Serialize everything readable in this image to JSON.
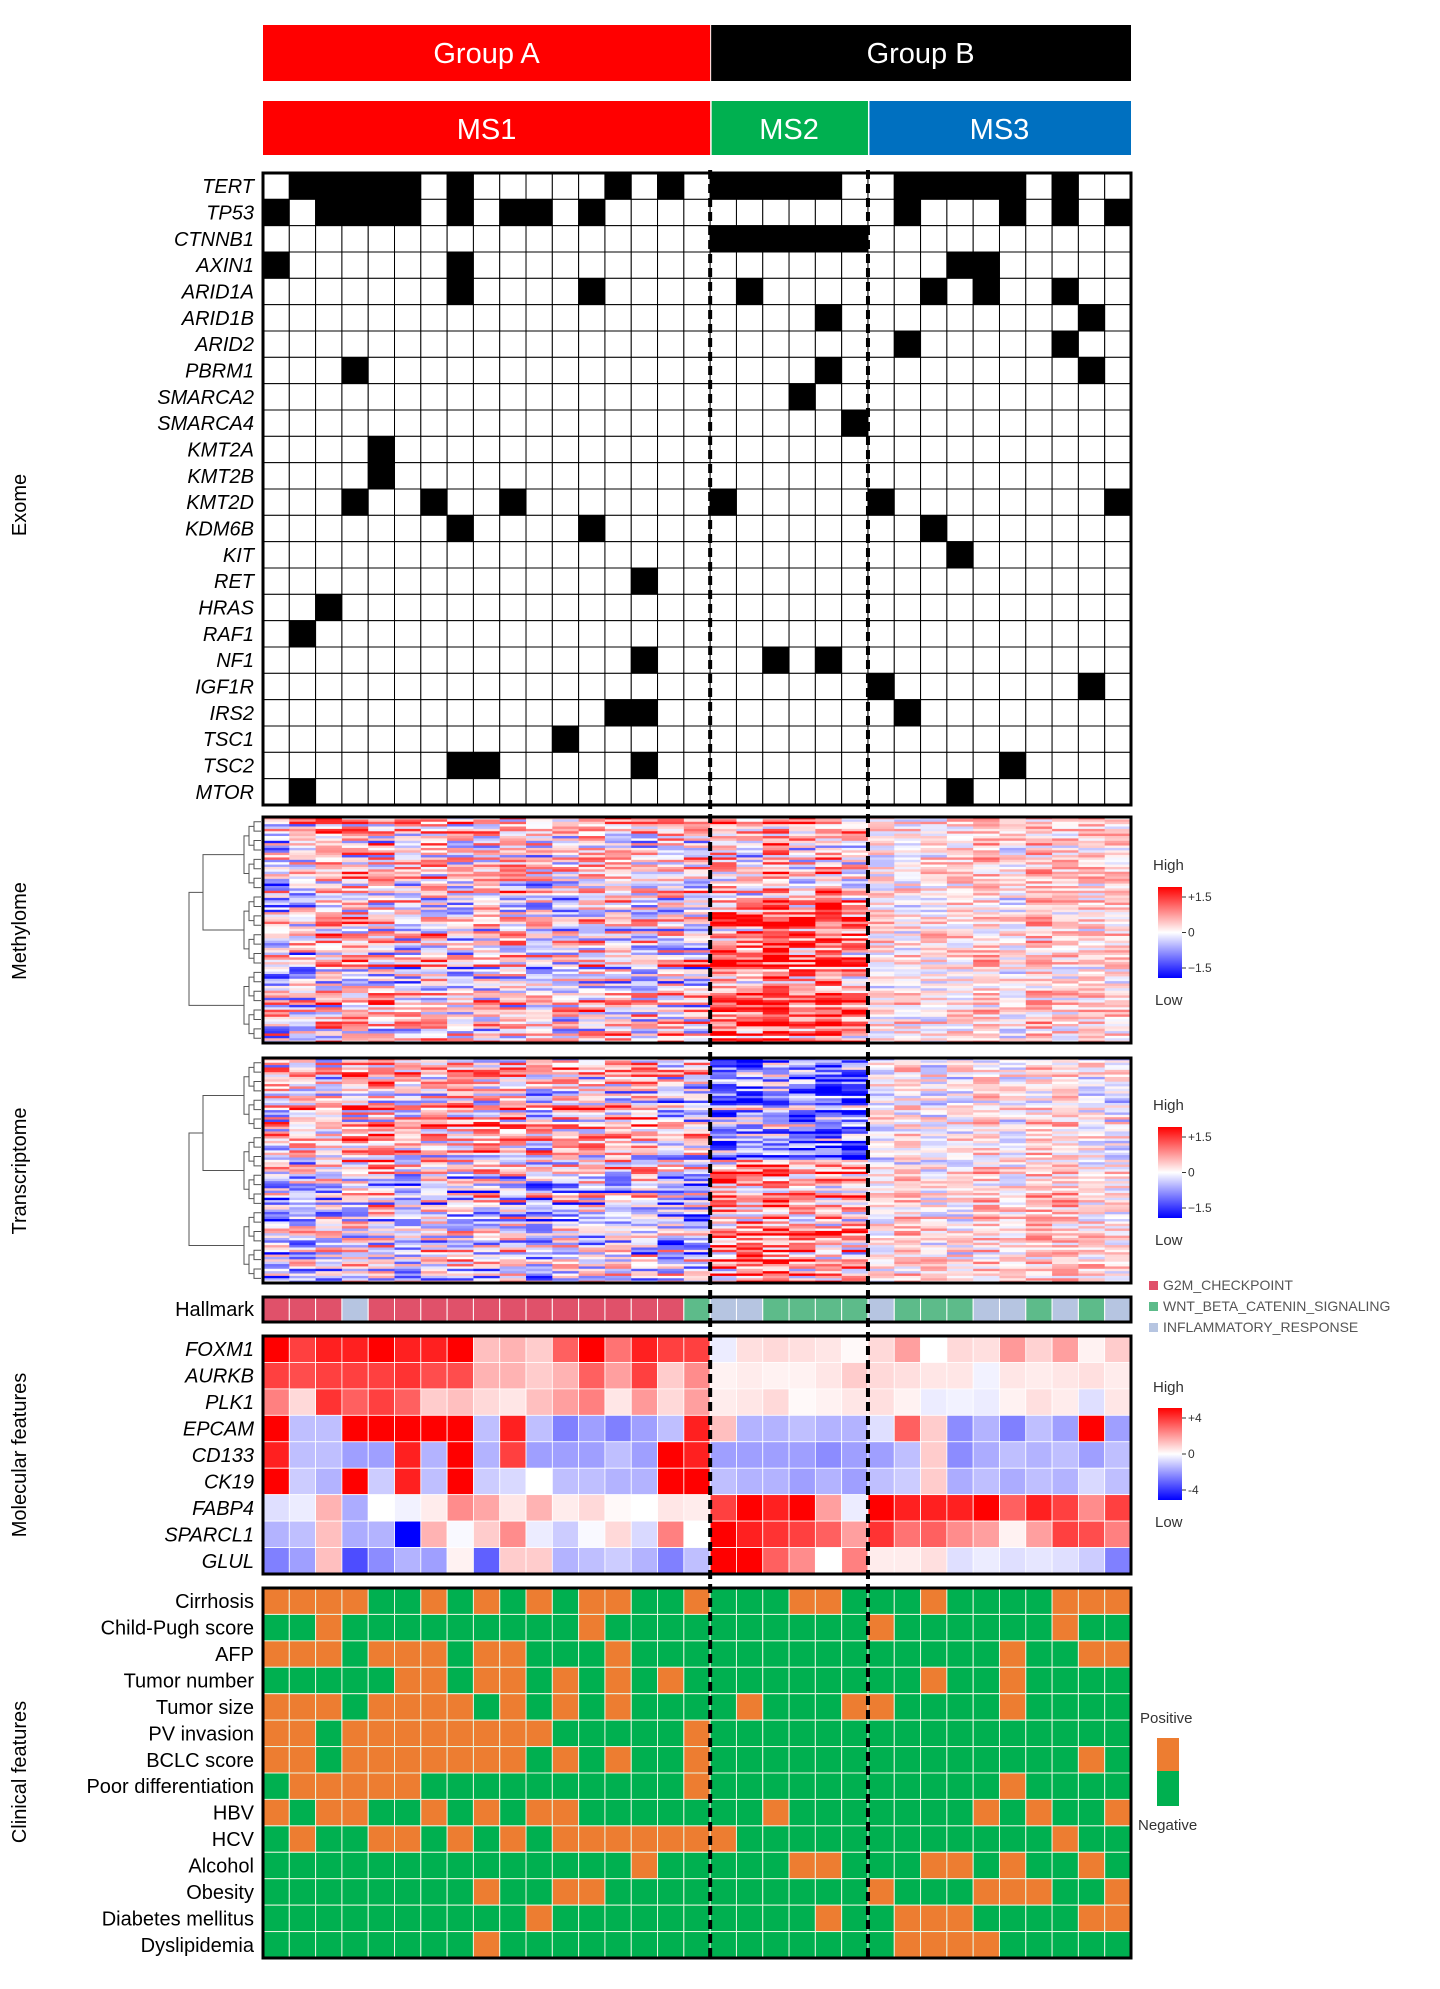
{
  "chart_data": {
    "type": "heatmap",
    "groups": [
      {
        "label": "Group A",
        "color": "#FF0000",
        "n": 17
      },
      {
        "label": "Group B",
        "color": "#000000",
        "n": 16
      }
    ],
    "subtypes": [
      {
        "label": "MS1",
        "color": "#FF0000",
        "n": 17
      },
      {
        "label": "MS2",
        "color": "#00B050",
        "n": 6
      },
      {
        "label": "MS3",
        "color": "#0070C0",
        "n": 10
      }
    ],
    "exome": {
      "label": "Exome",
      "mutated_color": "#000000",
      "genes": [
        {
          "name": "TERT",
          "values": "01111101000001010|111110|0111110100"
        },
        {
          "name": "TP53",
          "values": "10111101011010000|000000|0100010101"
        },
        {
          "name": "CTNNB1",
          "values": "00000000000000000|111111|0000000000"
        },
        {
          "name": "AXIN1",
          "values": "10000001000000000|000000|0001100000"
        },
        {
          "name": "ARID1A",
          "values": "00000001000010000|010000|0010100100"
        },
        {
          "name": "ARID1B",
          "values": "00000000000000000|000010|0000000010"
        },
        {
          "name": "ARID2",
          "values": "00000000000000000|000000|0100000100"
        },
        {
          "name": "PBRM1",
          "values": "00010000000000000|000010|0000000010"
        },
        {
          "name": "SMARCA2",
          "values": "00000000000000000|000100|0000000000"
        },
        {
          "name": "SMARCA4",
          "values": "00000000000000000|000001|0000000000"
        },
        {
          "name": "KMT2A",
          "values": "00001000000000000|000000|0000000000"
        },
        {
          "name": "KMT2B",
          "values": "00001000000000000|000000|0000000000"
        },
        {
          "name": "KMT2D",
          "values": "00010010010000000|100000|1000000001"
        },
        {
          "name": "KDM6B",
          "values": "00000001000010000|000000|0010000000"
        },
        {
          "name": "KIT",
          "values": "00000000000000000|000000|0001000000"
        },
        {
          "name": "RET",
          "values": "00000000000000100|000000|0000000000"
        },
        {
          "name": "HRAS",
          "values": "00100000000000000|000000|0000000000"
        },
        {
          "name": "RAF1",
          "values": "01000000000000000|000000|0000000000"
        },
        {
          "name": "NF1",
          "values": "00000000000000100|001010|0000000000"
        },
        {
          "name": "IGF1R",
          "values": "00000000000000000|000000|1000000010"
        },
        {
          "name": "IRS2",
          "values": "00000000000001100|000000|0100000000"
        },
        {
          "name": "TSC1",
          "values": "00000000000100000|000000|0000000000"
        },
        {
          "name": "TSC2",
          "values": "00000001100000100|000000|0000010000"
        },
        {
          "name": "MTOR",
          "values": "01000000000000000|000000|0001000000"
        }
      ]
    },
    "methylome": {
      "label": "Methylome",
      "legend": {
        "high": "High",
        "low": "Low",
        "ticks": [
          "+1.5",
          "0",
          "−1.5"
        ],
        "range": [
          -1.5,
          1.5
        ]
      }
    },
    "transcriptome": {
      "label": "Transcriptome",
      "legend": {
        "high": "High",
        "low": "Low",
        "ticks": [
          "+1.5",
          "0",
          "−1.5"
        ],
        "range": [
          -1.5,
          1.5
        ]
      }
    },
    "hallmark": {
      "label": "Hallmark",
      "values": "GGGIGGGGGGGGGGGGW|IIWWWW|IWWWIIWIWI",
      "categories": [
        {
          "code": "G",
          "name": "G2M_CHECKPOINT",
          "color": "#E0516A"
        },
        {
          "code": "W",
          "name": "WNT_BETA_CATENIN_SIGNALING",
          "color": "#5DBB8A"
        },
        {
          "code": "I",
          "name": "INFLAMMATORY_RESPONSE",
          "color": "#B6C5E1"
        }
      ]
    },
    "molecular": {
      "label": "Molecular features",
      "legend": {
        "high": "High",
        "low": "Low",
        "ticks": [
          "+4",
          "0",
          "-4"
        ],
        "range": [
          -4,
          4
        ]
      },
      "genes": [
        {
          "name": "FOXM1",
          "values": [
            4,
            3,
            3.5,
            3.5,
            4,
            3.5,
            3.5,
            4,
            1,
            1.2,
            0.8,
            2.5,
            4,
            2.2,
            3.5,
            3,
            3,
            -0.3,
            0.5,
            0.6,
            0.5,
            0.4,
            0.1,
            0.6,
            1.5,
            0,
            0.6,
            0.5,
            1.6,
            0.7,
            1.5,
            0.2,
            0.8
          ]
        },
        {
          "name": "AURKB",
          "values": [
            3,
            2.8,
            3,
            3,
            3,
            3.2,
            2.8,
            2.8,
            1.2,
            1.2,
            0.8,
            1.2,
            2.5,
            1.5,
            3,
            0.8,
            1.8,
            0.2,
            0.3,
            0.2,
            0.2,
            0.4,
            0.8,
            0.6,
            0.5,
            0.4,
            0.4,
            -0.2,
            0.4,
            0.3,
            0.4,
            0.5,
            0.3
          ]
        },
        {
          "name": "PLK1",
          "values": [
            2,
            0.6,
            3.2,
            2.5,
            3,
            2.5,
            0.8,
            1,
            0.6,
            0.4,
            1,
            1.5,
            2,
            0.4,
            1.6,
            0.6,
            1.5,
            0.3,
            0.4,
            0.6,
            0.1,
            0.2,
            0.4,
            0.5,
            0.2,
            -0.3,
            -0.2,
            -0.3,
            0.2,
            0.5,
            0.3,
            -0.5,
            0.4
          ]
        },
        {
          "name": "EPCAM",
          "values": [
            4,
            -1,
            -1,
            4,
            4,
            4,
            4,
            4,
            -1,
            3.5,
            -1,
            -2,
            -1.5,
            -2,
            -1.5,
            -1,
            3.5,
            1,
            -1.2,
            -1.2,
            -1,
            -1.2,
            -1.2,
            -0.5,
            2.5,
            0.8,
            -1.8,
            -1.2,
            -2,
            -1,
            -1.5,
            4,
            -1.5
          ]
        },
        {
          "name": "CD133",
          "values": [
            3.5,
            -1,
            -1,
            -1.5,
            -1.5,
            3.5,
            -1.2,
            4,
            -1.2,
            3,
            -1.5,
            -1.5,
            -1.5,
            -1,
            -1.5,
            4,
            3.5,
            -1.5,
            -1.5,
            -1.5,
            -1.5,
            -1.8,
            -1.5,
            -1.5,
            -1,
            0.8,
            -1.8,
            -1.3,
            -1,
            -1.2,
            -1,
            -1.5,
            -1
          ]
        },
        {
          "name": "CK19",
          "values": [
            4,
            -0.8,
            -1.2,
            4,
            -0.8,
            3.5,
            -1,
            4,
            -0.8,
            -0.6,
            0,
            -1,
            -1,
            -1.2,
            -1.2,
            4,
            4,
            -1,
            -1.2,
            -1.2,
            -1.5,
            -1.2,
            -1.5,
            -1,
            -0.8,
            0.8,
            -1.3,
            -1,
            -1.3,
            -1,
            -1.2,
            -0.6,
            -1
          ]
        },
        {
          "name": "FABP4",
          "values": [
            -0.5,
            -0.3,
            1.2,
            -1.3,
            0,
            -0.2,
            0.3,
            1.8,
            1.4,
            0.4,
            1.2,
            0.3,
            0.6,
            0.1,
            0,
            0.4,
            0.3,
            3,
            4,
            3.5,
            4,
            1.5,
            -0.3,
            4,
            3.5,
            3.5,
            3.5,
            4,
            2.5,
            3.5,
            3,
            1.8,
            3
          ]
        },
        {
          "name": "SPARCL1",
          "values": [
            -1.2,
            -1,
            1,
            -1.3,
            -1.2,
            -4,
            1.2,
            -0.1,
            0.8,
            1.8,
            -0.3,
            -0.8,
            -0.1,
            0.6,
            -0.6,
            2,
            0,
            4,
            3.5,
            3.2,
            3,
            2.5,
            1.5,
            3.2,
            2.2,
            2.5,
            1.8,
            1.5,
            0.2,
            1.5,
            3,
            2.8,
            2
          ]
        },
        {
          "name": "GLUL",
          "values": [
            -2,
            -1.5,
            1,
            -2.8,
            -1.8,
            -1.2,
            -1.5,
            0.2,
            -2.5,
            0.8,
            0.8,
            -1.2,
            -1,
            -0.8,
            -1.2,
            -2,
            -1,
            4,
            4,
            2.5,
            1.8,
            0,
            2,
            0.3,
            0.3,
            0.5,
            -0.5,
            -0.3,
            -0.5,
            -0.4,
            -0.5,
            -0.8,
            -2
          ]
        }
      ]
    },
    "clinical": {
      "label": "Clinical features",
      "legend": {
        "positive": "Positive",
        "negative": "Negative",
        "positive_color": "#ED7D31",
        "negative_color": "#00B050"
      },
      "features": [
        {
          "name": "Cirrhosis",
          "values": "11110010101011001|000110|0010000111"
        },
        {
          "name": "Child-Pugh score",
          "values": "00100000000010000|000000|1000000100"
        },
        {
          "name": "AFP",
          "values": "11101110110001000|000000|0000010011"
        },
        {
          "name": "Tumor number",
          "values": "00000110110101010|000000|0010010000"
        },
        {
          "name": "Tumor size",
          "values": "11101111010101000|010001|1000010000"
        },
        {
          "name": "PV invasion",
          "values": "11011111111000001|000000|0000000000"
        },
        {
          "name": "BCLC score",
          "values": "11011111110101001|000000|0000000010"
        },
        {
          "name": "Poor differentiation",
          "values": "01111100000000001|000000|0000010000"
        },
        {
          "name": "HBV",
          "values": "10110010101100000|001000|0000101001"
        },
        {
          "name": "HCV",
          "values": "01001101010111111|100000|0000000100"
        },
        {
          "name": "Alcohol",
          "values": "00000000000000100|000110|0011010010"
        },
        {
          "name": "Obesity",
          "values": "00000000100110000|000000|1000111001"
        },
        {
          "name": "Diabetes mellitus",
          "values": "00000000001000000|000010|0111000011"
        },
        {
          "name": "Dyslipidemia",
          "values": "00000000100000000|000000|0111100000"
        }
      ]
    }
  }
}
